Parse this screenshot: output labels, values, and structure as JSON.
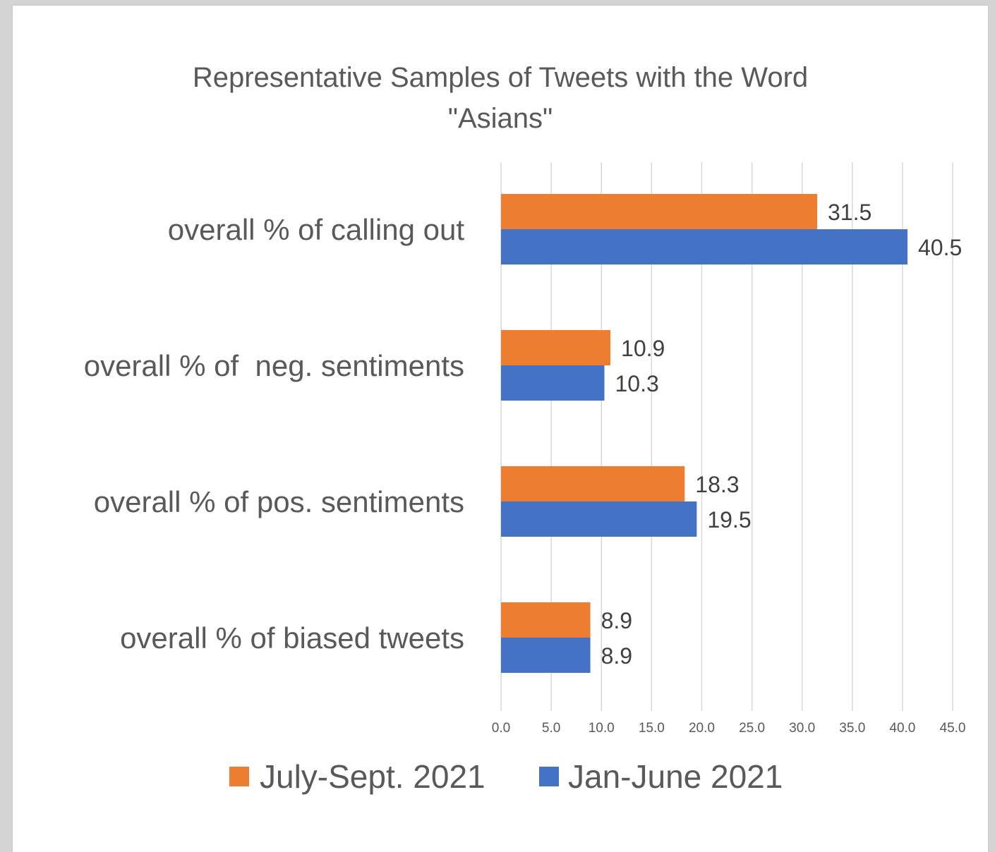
{
  "chart_data": {
    "type": "bar",
    "orientation": "horizontal",
    "title_lines": [
      "Representative Samples of Tweets with the Word",
      "\"Asians\""
    ],
    "categories": [
      "overall % of calling out",
      "overall % of  neg. sentiments",
      "overall % of pos. sentiments",
      "overall % of biased tweets"
    ],
    "series": [
      {
        "name": "July-Sept. 2021",
        "color": "#ED7D31",
        "values": [
          31.5,
          10.9,
          18.3,
          8.9
        ]
      },
      {
        "name": "Jan-June 2021",
        "color": "#4472C4",
        "values": [
          40.5,
          10.3,
          19.5,
          8.9
        ]
      }
    ],
    "xlim": [
      0,
      45
    ],
    "xticks": [
      "0.0",
      "5.0",
      "10.0",
      "15.0",
      "20.0",
      "25.0",
      "30.0",
      "35.0",
      "40.0",
      "45.0"
    ],
    "grid": true,
    "legend_position": "bottom"
  }
}
